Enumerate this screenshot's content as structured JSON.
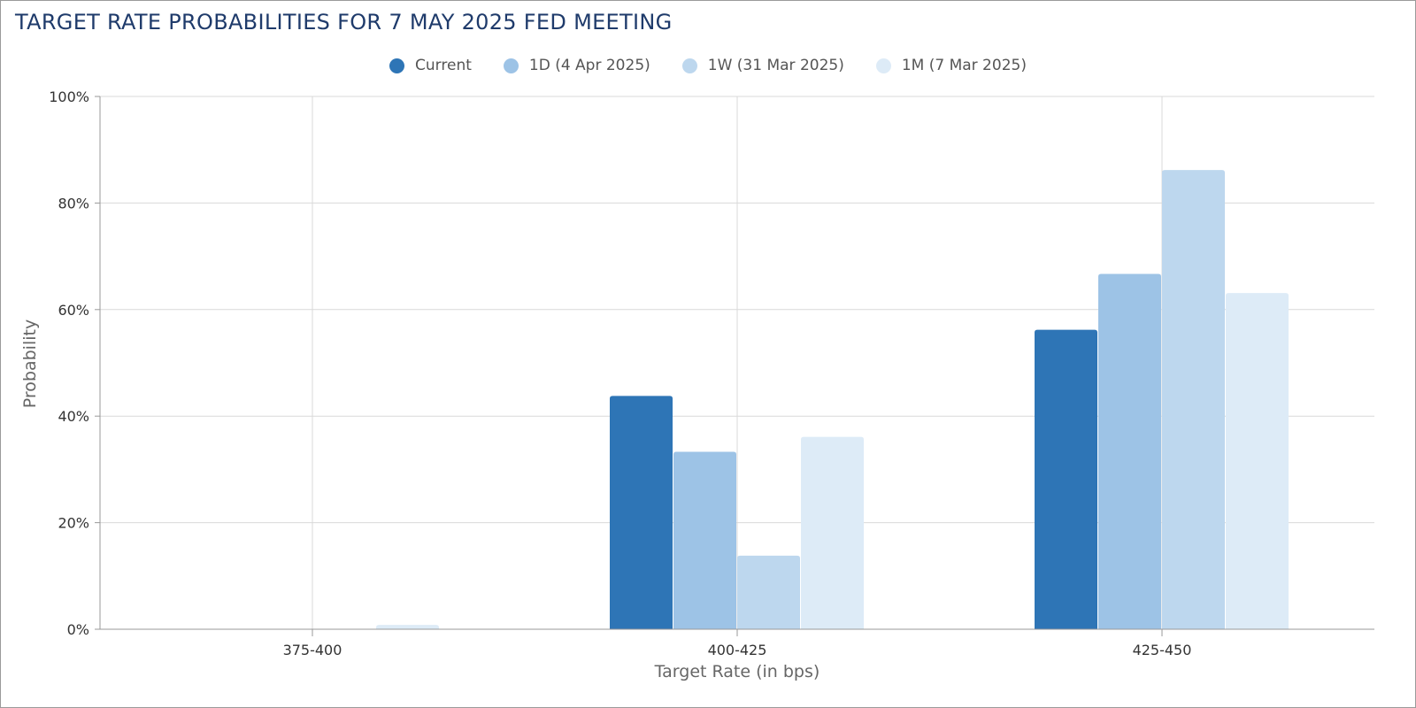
{
  "chart_data": {
    "type": "bar",
    "title": "TARGET RATE PROBABILITIES FOR 7 MAY 2025 FED MEETING",
    "xlabel": "Target Rate (in bps)",
    "ylabel": "Probability",
    "categories": [
      "375-400",
      "400-425",
      "425-450"
    ],
    "series": [
      {
        "name": "Current",
        "color": "#2e75b6",
        "values": [
          0,
          43.8,
          56.2
        ]
      },
      {
        "name": "1D (4 Apr 2025)",
        "color": "#9dc3e6",
        "values": [
          0,
          33.3,
          66.7
        ]
      },
      {
        "name": "1W (31 Mar 2025)",
        "color": "#bdd7ee",
        "values": [
          0,
          13.8,
          86.2
        ]
      },
      {
        "name": "1M (7 Mar 2025)",
        "color": "#ddebf7",
        "values": [
          0.8,
          36.1,
          63.1
        ]
      }
    ],
    "ylim": [
      0,
      100
    ],
    "yticks": [
      "0%",
      "20%",
      "40%",
      "60%",
      "80%",
      "100%"
    ],
    "grid": true,
    "legend_position": "top-center"
  }
}
